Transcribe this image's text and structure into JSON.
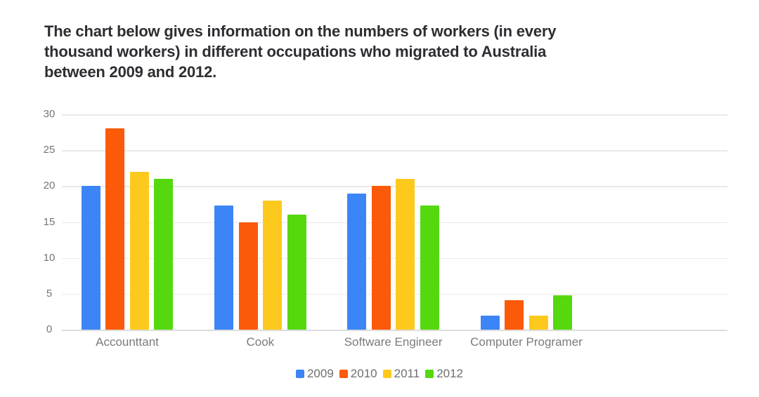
{
  "title": {
    "lines": [
      "The chart below gives information on the numbers of workers (in every",
      "thousand workers) in different occupations who migrated to Australia",
      "between 2009 and 2012."
    ]
  },
  "chart_data": {
    "type": "bar",
    "title": "The chart below gives information on the numbers of workers (in every thousand workers) in different occupations who migrated to Australia between 2009 and 2012.",
    "xlabel": "",
    "ylabel": "",
    "categories": [
      "Accounttant",
      "Cook",
      "Software Engineer",
      "Computer Programer"
    ],
    "series": [
      {
        "name": "2009",
        "color": "#3C85F7",
        "values": [
          20,
          17.3,
          19,
          2
        ]
      },
      {
        "name": "2010",
        "color": "#FB5A09",
        "values": [
          28,
          15,
          20,
          4.1
        ]
      },
      {
        "name": "2011",
        "color": "#FDC91D",
        "values": [
          22,
          18,
          21,
          2
        ]
      },
      {
        "name": "2012",
        "color": "#56D80F",
        "values": [
          21,
          16,
          17.3,
          4.8
        ]
      }
    ],
    "ylim": [
      0,
      30
    ],
    "yticks": [
      0,
      5,
      10,
      15,
      20,
      25,
      30
    ],
    "grid": true,
    "legend_position": "bottom",
    "text_colors": {
      "axis": "#757575",
      "category": "#7b7b7b",
      "title": "#2d2d32"
    }
  }
}
